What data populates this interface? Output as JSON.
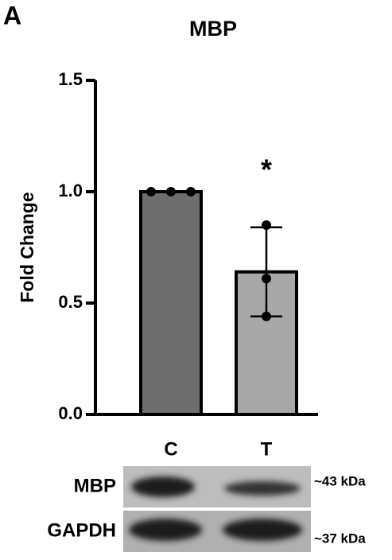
{
  "chart_data": {
    "type": "bar",
    "panel_label": "A",
    "title": "MBP",
    "ylabel": "Fold Change",
    "categories": [
      "C",
      "T"
    ],
    "values": [
      1.0,
      0.64
    ],
    "errors": [
      0,
      0.2
    ],
    "points": [
      [
        1.0,
        1.0,
        1.0
      ],
      [
        0.85,
        0.61,
        0.44
      ]
    ],
    "colors": [
      "#6e6e6e",
      "#a8a8a8"
    ],
    "annotations": [
      null,
      "*"
    ],
    "ylim": [
      0,
      1.5
    ],
    "yticks": [
      {
        "value": 0,
        "label": "0.0"
      },
      {
        "value": 0.5,
        "label": "0.5"
      },
      {
        "value": 1,
        "label": "1.0"
      },
      {
        "value": 1.5,
        "label": "1.5"
      }
    ]
  },
  "blot": {
    "rows": [
      {
        "label": "MBP",
        "size": "~43 kDa"
      },
      {
        "label": "GAPDH",
        "size": "~37 kDa"
      }
    ]
  }
}
